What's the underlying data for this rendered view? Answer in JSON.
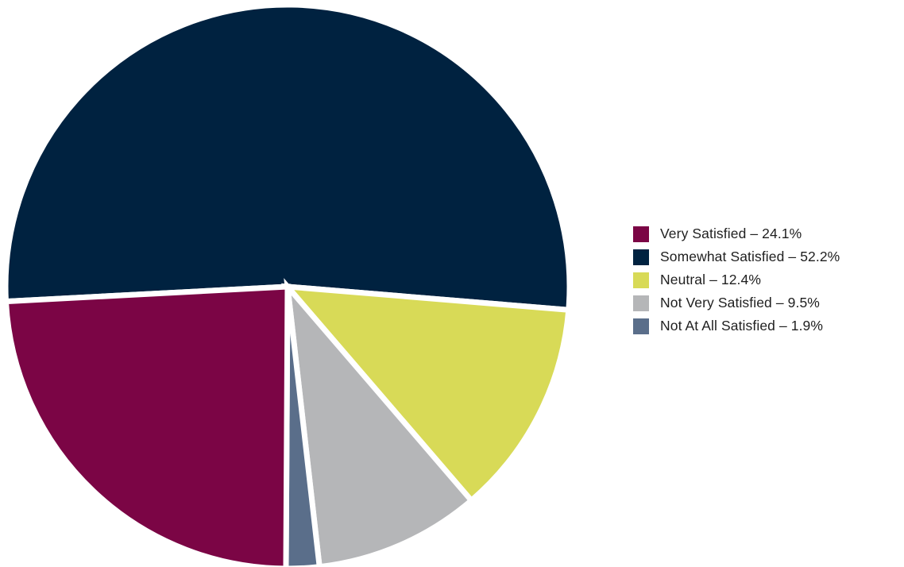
{
  "chart_data": {
    "type": "pie",
    "title": "",
    "categories": [
      "Very Satisfied",
      "Somewhat Satisfied",
      "Neutral",
      "Not Very Satisfied",
      "Not At All Satisfied"
    ],
    "values": [
      24.1,
      52.2,
      12.4,
      9.5,
      1.9
    ],
    "unit": "%",
    "colors": [
      "#7b0545",
      "#002240",
      "#d8da57",
      "#b5b6b8",
      "#5a6e8a"
    ],
    "legend_position": "right",
    "slice_separator_color": "#ffffff"
  },
  "legend": {
    "items": [
      {
        "label": "Very Satisfied – 24.1%",
        "color": "#7b0545"
      },
      {
        "label": "Somewhat Satisfied – 52.2%",
        "color": "#002240"
      },
      {
        "label": "Neutral – 12.4%",
        "color": "#d8da57"
      },
      {
        "label": "Not Very Satisfied – 9.5%",
        "color": "#b5b6b8"
      },
      {
        "label": "Not At All Satisfied – 1.9%",
        "color": "#5a6e8a"
      }
    ]
  }
}
